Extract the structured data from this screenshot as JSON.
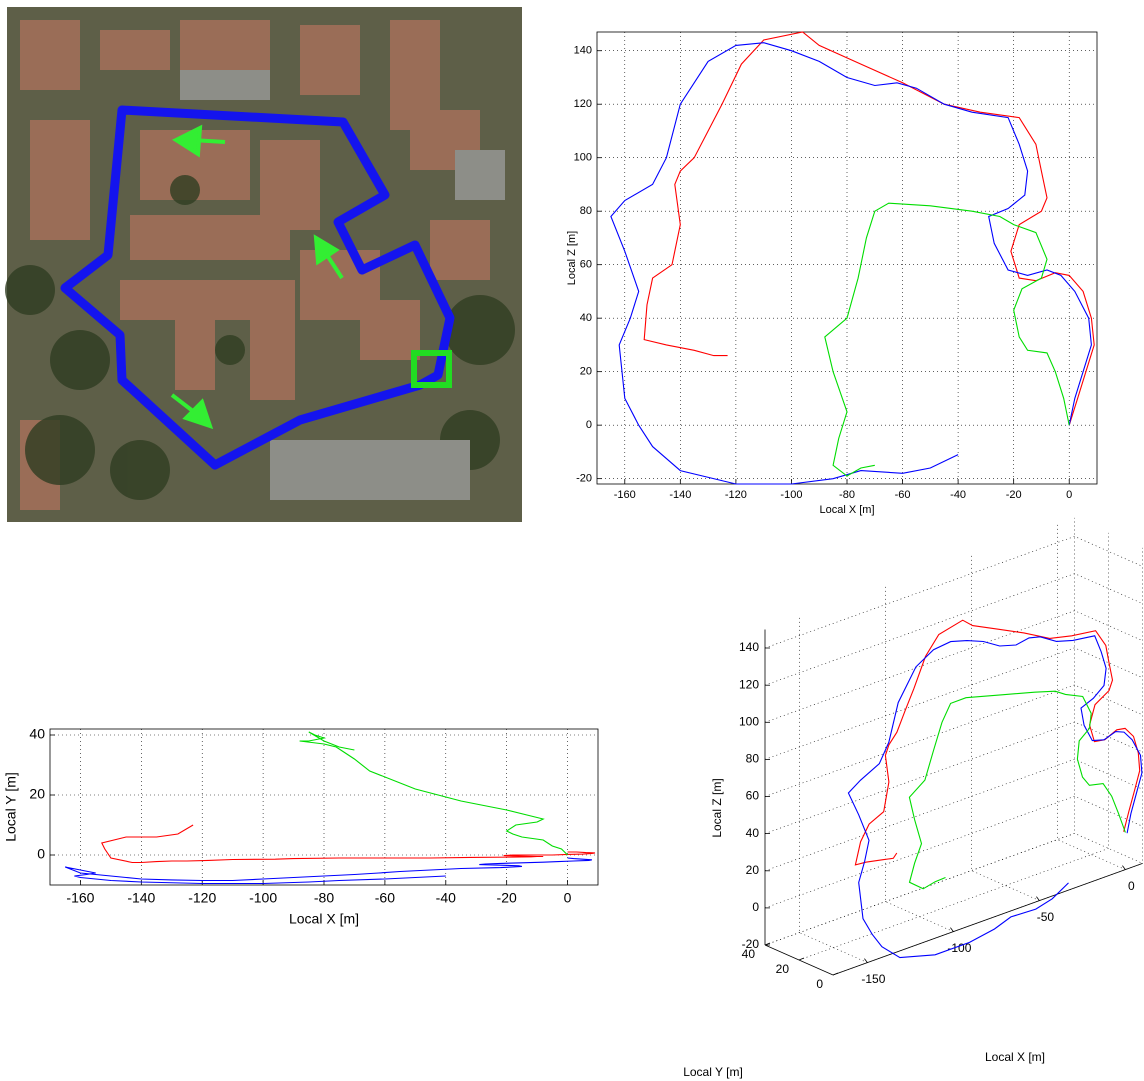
{
  "chart_data": [
    {
      "type": "line",
      "xlabel": "Local X [m]",
      "ylabel": "Local Z [m]",
      "xlim": [
        -170,
        10
      ],
      "ylim": [
        -22,
        147
      ],
      "xticks": [
        -160,
        -140,
        -120,
        -100,
        -80,
        -60,
        -40,
        -20,
        0
      ],
      "yticks": [
        -20,
        0,
        20,
        40,
        60,
        80,
        100,
        120,
        140
      ],
      "grid": true,
      "series": [
        {
          "color": "#ff0000",
          "x": [
            0,
            3,
            6,
            9,
            8,
            5,
            0,
            -5,
            -12,
            -18,
            -21,
            -18,
            -10,
            -8,
            -10,
            -12,
            -18,
            -32,
            -45,
            -60,
            -75,
            -90,
            -96,
            -110,
            -118,
            -125,
            -130,
            -135,
            -140,
            -142,
            -140,
            -143,
            -150,
            -152,
            -153,
            -145,
            -135,
            -128,
            -123
          ],
          "values": [
            0,
            10,
            20,
            30,
            40,
            50,
            56,
            57,
            54,
            55,
            65,
            75,
            80,
            85,
            95,
            105,
            115,
            117,
            120,
            128,
            135,
            142,
            147,
            144,
            135,
            120,
            110,
            100,
            95,
            90,
            75,
            60,
            55,
            45,
            32,
            30,
            28,
            26,
            26
          ]
        },
        {
          "color": "#0000ff",
          "x": [
            0,
            2,
            5,
            8,
            7,
            2,
            -3,
            -8,
            -15,
            -22,
            -27,
            -29,
            -22,
            -16,
            -15,
            -18,
            -22,
            -35,
            -45,
            -55,
            -62,
            -70,
            -80,
            -90,
            -100,
            -110,
            -120,
            -130,
            -140,
            -145,
            -150,
            -160,
            -165,
            -160,
            -155,
            -158,
            -162,
            -160,
            -155,
            -150,
            -140,
            -120,
            -100,
            -85,
            -75,
            -60,
            -50,
            -40
          ],
          "values": [
            0,
            10,
            20,
            30,
            40,
            50,
            56,
            58,
            56,
            58,
            68,
            78,
            81,
            86,
            95,
            105,
            115,
            117,
            120,
            126,
            128,
            127,
            130,
            136,
            140,
            143,
            142,
            136,
            120,
            100,
            90,
            84,
            78,
            65,
            50,
            40,
            30,
            10,
            0,
            -8,
            -17,
            -22,
            -22,
            -20,
            -17,
            -18,
            -16,
            -11
          ]
        },
        {
          "color": "#00dd00",
          "x": [
            0,
            -2,
            -5,
            -8,
            -15,
            -18,
            -20,
            -17,
            -10,
            -8,
            -12,
            -20,
            -25,
            -35,
            -50,
            -65,
            -70,
            -73,
            -76,
            -80,
            -88,
            -85,
            -80,
            -83,
            -85,
            -80,
            -75,
            -70
          ],
          "values": [
            0,
            10,
            20,
            27,
            28,
            33,
            43,
            51,
            55,
            62,
            72,
            75,
            78,
            80,
            82,
            83,
            80,
            70,
            55,
            40,
            33,
            20,
            5,
            -5,
            -15,
            -19,
            -16,
            -15
          ]
        }
      ]
    },
    {
      "type": "line",
      "xlabel": "Local X [m]",
      "ylabel": "Local Y [m]",
      "xlim": [
        -170,
        10
      ],
      "ylim": [
        -10,
        42
      ],
      "xticks": [
        -160,
        -140,
        -120,
        -100,
        -80,
        -60,
        -40,
        -20,
        0
      ],
      "yticks": [
        0,
        20,
        40
      ],
      "grid": true,
      "series": [
        {
          "color": "#ff0000",
          "x": [
            0,
            3,
            6,
            9,
            8,
            5,
            0,
            -5,
            -12,
            -18,
            -21,
            -18,
            -10,
            -8,
            -10,
            -12,
            -18,
            -32,
            -45,
            -60,
            -75,
            -90,
            -96,
            -110,
            -118,
            -125,
            -130,
            -135,
            -140,
            -142,
            -140,
            -143,
            -150,
            -152,
            -153,
            -145,
            -135,
            -128,
            -123
          ],
          "values": [
            1,
            1,
            0.8,
            0.7,
            0.5,
            0.3,
            0.2,
            0,
            0,
            0,
            -0.2,
            -0.3,
            -0.5,
            -0.5,
            -0.5,
            -0.6,
            -0.7,
            -0.8,
            -1,
            -1,
            -1,
            -1.2,
            -1.4,
            -1.5,
            -1.8,
            -2,
            -2,
            -2.2,
            -2.5,
            -2.5,
            -2.5,
            -2.5,
            -1,
            2,
            4,
            6,
            6,
            7,
            10
          ]
        },
        {
          "color": "#0000ff",
          "x": [
            0,
            2,
            5,
            8,
            7,
            2,
            -3,
            -8,
            -15,
            -22,
            -27,
            -29,
            -22,
            -16,
            -15,
            -18,
            -22,
            -35,
            -45,
            -55,
            -62,
            -70,
            -80,
            -90,
            -100,
            -110,
            -120,
            -130,
            -140,
            -145,
            -150,
            -160,
            -165,
            -160,
            -155,
            -158,
            -162,
            -160,
            -155,
            -150,
            -140,
            -120,
            -100,
            -85,
            -75,
            -60,
            -50,
            -40
          ],
          "values": [
            -1,
            -1.2,
            -1.4,
            -1.6,
            -1.8,
            -2,
            -2.2,
            -2.4,
            -2.6,
            -2.8,
            -3,
            -3.2,
            -3.4,
            -3.6,
            -3.8,
            -4,
            -4.2,
            -4.5,
            -5,
            -5.5,
            -6,
            -6.5,
            -7,
            -7.5,
            -8,
            -8.5,
            -8.5,
            -8.3,
            -8,
            -7.5,
            -7,
            -6,
            -4,
            -5,
            -6,
            -6.5,
            -7,
            -7.5,
            -8,
            -8.5,
            -9,
            -9.5,
            -9.5,
            -9,
            -8.5,
            -8,
            -7.5,
            -7
          ]
        },
        {
          "color": "#00dd00",
          "x": [
            0,
            -2,
            -5,
            -8,
            -15,
            -18,
            -20,
            -17,
            -10,
            -8,
            -12,
            -20,
            -25,
            -35,
            -50,
            -65,
            -70,
            -73,
            -76,
            -80,
            -88,
            -85,
            -80,
            -83,
            -85,
            -80,
            -75,
            -70
          ],
          "values": [
            0,
            2,
            3,
            5,
            6,
            7,
            8,
            10,
            11,
            12,
            13,
            15,
            16,
            18,
            22,
            28,
            32,
            34,
            36,
            37,
            38,
            38,
            39,
            40,
            41,
            38,
            36,
            35
          ]
        }
      ]
    },
    {
      "type": "line3d",
      "xlabel": "Local X [m]",
      "ylabel": "Local Y [m]",
      "zlabel": "Local Z [m]",
      "xlim": [
        -170,
        10
      ],
      "ylim": [
        0,
        40
      ],
      "zlim": [
        -20,
        150
      ],
      "xticks": [
        -150,
        -100,
        -50,
        0
      ],
      "yticks": [
        0,
        20,
        40
      ],
      "zticks": [
        -20,
        0,
        20,
        40,
        60,
        80,
        100,
        120,
        140
      ],
      "grid": true,
      "series": [
        {
          "color": "#ff0000",
          "x": [
            0,
            3,
            6,
            9,
            8,
            5,
            0,
            -5,
            -12,
            -18,
            -21,
            -18,
            -10,
            -8,
            -10,
            -12,
            -18,
            -32,
            -45,
            -60,
            -75,
            -90,
            -96,
            -110,
            -118,
            -125,
            -130,
            -135,
            -140,
            -142,
            -140,
            -143,
            -150,
            -152,
            -153,
            -145,
            -135,
            -128,
            -123
          ],
          "y": [
            1,
            1,
            0.8,
            0.7,
            0.5,
            0.3,
            0.2,
            0,
            0,
            0,
            -0.2,
            -0.3,
            -0.5,
            -0.5,
            -0.5,
            -0.6,
            -0.7,
            -0.8,
            -1,
            -1,
            -1,
            -1.2,
            -1.4,
            -1.5,
            -1.8,
            -2,
            -2,
            -2.2,
            -2.5,
            -2.5,
            -2.5,
            -2.5,
            -1,
            2,
            4,
            6,
            6,
            7,
            10
          ],
          "z": [
            0,
            10,
            20,
            30,
            40,
            50,
            56,
            57,
            54,
            55,
            65,
            75,
            80,
            85,
            95,
            105,
            115,
            117,
            120,
            128,
            135,
            142,
            147,
            144,
            135,
            120,
            110,
            100,
            95,
            90,
            75,
            60,
            55,
            45,
            32,
            30,
            28,
            26,
            26
          ]
        },
        {
          "color": "#0000ff",
          "x": [
            0,
            2,
            5,
            8,
            7,
            2,
            -3,
            -8,
            -15,
            -22,
            -27,
            -29,
            -22,
            -16,
            -15,
            -18,
            -22,
            -35,
            -45,
            -55,
            -62,
            -70,
            -80,
            -90,
            -100,
            -110,
            -120,
            -130,
            -140,
            -145,
            -150,
            -160,
            -165,
            -160,
            -155,
            -158,
            -162,
            -160,
            -155,
            -150,
            -140,
            -120,
            -100,
            -85,
            -75,
            -60,
            -50,
            -40
          ],
          "y": [
            -1,
            -1.2,
            -1.4,
            -1.6,
            -1.8,
            -2,
            -2.2,
            -2.4,
            -2.6,
            -2.8,
            -3,
            -3.2,
            -3.4,
            -3.6,
            -3.8,
            -4,
            -4.2,
            -4.5,
            -5,
            -5.5,
            -6,
            -6.5,
            -7,
            -7.5,
            -8,
            -8.5,
            -8.5,
            -8.3,
            -8,
            -7.5,
            -7,
            -6,
            -4,
            -5,
            -6,
            -6.5,
            -7,
            -7.5,
            -8,
            -8.5,
            -9,
            -9.5,
            -9.5,
            -9,
            -8.5,
            -8,
            -7.5,
            -7
          ],
          "z": [
            0,
            10,
            20,
            30,
            40,
            50,
            56,
            58,
            56,
            58,
            68,
            78,
            81,
            86,
            95,
            105,
            115,
            117,
            120,
            126,
            128,
            127,
            130,
            136,
            140,
            143,
            142,
            136,
            120,
            100,
            90,
            84,
            78,
            65,
            50,
            40,
            30,
            10,
            0,
            -8,
            -17,
            -22,
            -22,
            -20,
            -17,
            -18,
            -16,
            -11
          ]
        },
        {
          "color": "#00dd00",
          "x": [
            0,
            -2,
            -5,
            -8,
            -15,
            -18,
            -20,
            -17,
            -10,
            -8,
            -12,
            -20,
            -25,
            -35,
            -50,
            -65,
            -70,
            -73,
            -76,
            -80,
            -88,
            -85,
            -80,
            -83,
            -85,
            -80,
            -75,
            -70
          ],
          "y": [
            0,
            2,
            3,
            5,
            6,
            7,
            8,
            10,
            11,
            12,
            13,
            15,
            16,
            18,
            22,
            28,
            32,
            34,
            36,
            37,
            38,
            38,
            39,
            40,
            41,
            38,
            36,
            35
          ],
          "z": [
            0,
            10,
            20,
            27,
            28,
            33,
            43,
            51,
            55,
            62,
            72,
            75,
            78,
            80,
            82,
            83,
            80,
            70,
            55,
            40,
            33,
            20,
            5,
            -5,
            -15,
            -19,
            -16,
            -15
          ]
        }
      ]
    }
  ]
}
